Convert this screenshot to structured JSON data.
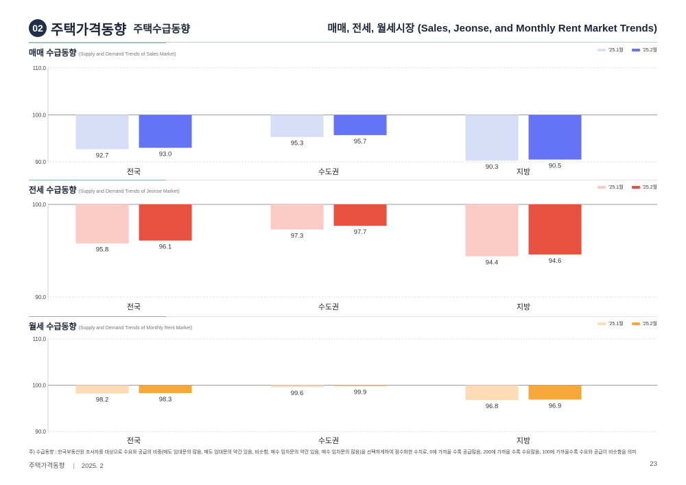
{
  "header": {
    "number": "02",
    "title": "주택가격동향",
    "subtitle": "주택수급동향",
    "right_title": "매매, 전세, 월세시장 (Sales, Jeonse, and Monthly Rent Market Trends)"
  },
  "chart_data": [
    {
      "type": "bar",
      "title": "매매 수급동향",
      "subtitle": "(Supply and Demand Trends of Sales Market)",
      "categories": [
        "전국",
        "수도권",
        "지방"
      ],
      "series": [
        {
          "name": "'25.1월",
          "values": [
            92.7,
            95.3,
            90.3
          ],
          "color": "#d6def8"
        },
        {
          "name": "'25.2월",
          "values": [
            93.0,
            95.7,
            90.5
          ],
          "color": "#6574f7"
        }
      ],
      "baseline": 100.0,
      "yticks": [
        "110.0",
        "100.0",
        "90.0"
      ],
      "ylim": [
        90,
        110
      ],
      "accent": "#7da8a8"
    },
    {
      "type": "bar",
      "title": "전세 수급동향",
      "subtitle": "(Supply and Demand Trends of Jeonse Market)",
      "categories": [
        "전국",
        "수도권",
        "지방"
      ],
      "series": [
        {
          "name": "'25.1월",
          "values": [
            95.8,
            97.3,
            94.4
          ],
          "color": "#fccbc6"
        },
        {
          "name": "'25.2월",
          "values": [
            96.1,
            97.7,
            94.6
          ],
          "color": "#e85040"
        }
      ],
      "baseline": 100.0,
      "yticks": [
        "100.0",
        "90.0"
      ],
      "ylim": [
        90,
        100
      ],
      "accent": "#7da8a8"
    },
    {
      "type": "bar",
      "title": "월세 수급동향",
      "subtitle": "(Supply and Demand Trends of Monthly Rent Market)",
      "categories": [
        "전국",
        "수도권",
        "지방"
      ],
      "series": [
        {
          "name": "'25.1월",
          "values": [
            98.2,
            99.6,
            96.8
          ],
          "color": "#fddcb5"
        },
        {
          "name": "'25.2월",
          "values": [
            98.3,
            99.9,
            96.9
          ],
          "color": "#f6a93a"
        }
      ],
      "baseline": 100.0,
      "yticks": [
        "110.0",
        "100.0",
        "90.0"
      ],
      "ylim": [
        90,
        110
      ],
      "accent": "#7da8a8"
    }
  ],
  "footnote": "주) 수급동향 : 한국부동산원 조사자를 대상으로 수요와 공급의 비중(매도 임대문의 많음, 매도 임대문의 약간 있음, 비슷함, 매수 임차문의 약간 있음, 매수 임차문의 많음)을 선택하게하여 점수화한 수치로, 0에 가까울 수록 공급많음, 200에 가까울 수록 수요많음, 100에 가까울수록 수요와 공급이 비슷함을 의미",
  "footer": {
    "left": "주택가격동향",
    "date": "2025. 2",
    "page": "23"
  }
}
